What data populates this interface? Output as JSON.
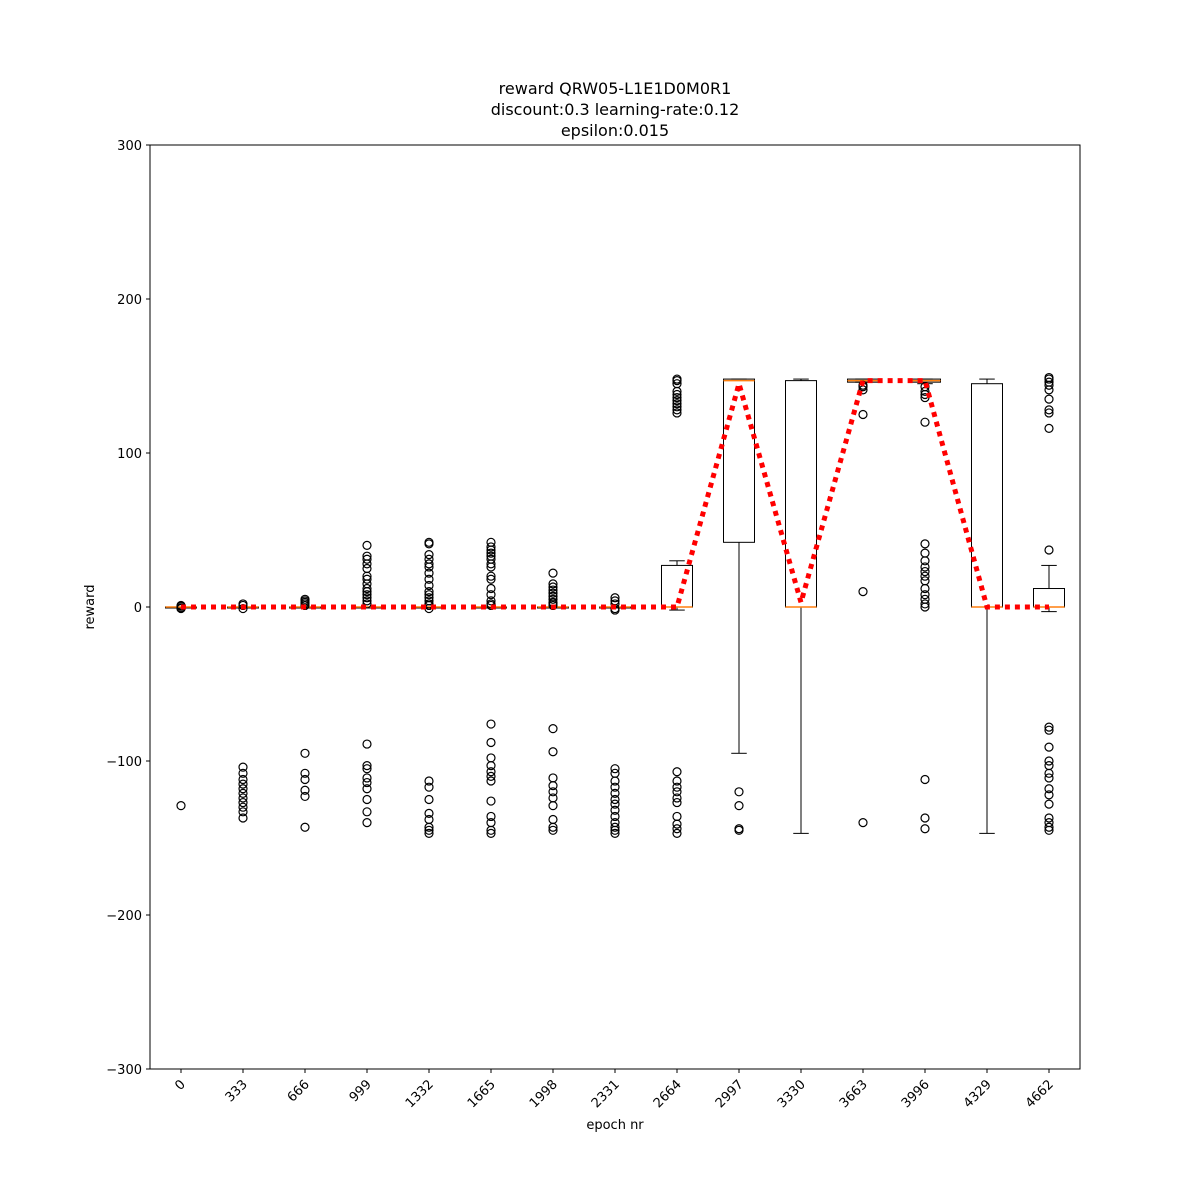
{
  "chart_data": {
    "type": "box",
    "title_lines": [
      "reward QRW05-L1E1D0M0R1",
      "discount:0.3 learning-rate:0.12",
      "epsilon:0.015"
    ],
    "xlabel": "epoch nr",
    "ylabel": "reward",
    "ylim": [
      -300,
      300
    ],
    "yticks": [
      -300,
      -200,
      -100,
      0,
      100,
      200,
      300
    ],
    "ytick_labels": [
      "−300",
      "−200",
      "−100",
      "0",
      "100",
      "200",
      "300"
    ],
    "grid": false,
    "categories": [
      "0",
      "333",
      "666",
      "999",
      "1332",
      "1665",
      "1998",
      "2331",
      "2664",
      "2997",
      "3330",
      "3663",
      "3996",
      "4329",
      "4662"
    ],
    "boxes": [
      {
        "q1": 0,
        "median": 0,
        "q3": 0,
        "whisker_low": 0,
        "whisker_high": 0,
        "outliers": [
          -1,
          -0.5,
          0.5,
          1,
          -129
        ]
      },
      {
        "q1": 0,
        "median": 0,
        "q3": 0,
        "whisker_low": 0,
        "whisker_high": 0,
        "outliers": [
          -1,
          1,
          2,
          -104,
          -108,
          -112,
          -115,
          -118,
          -121,
          -124,
          -127,
          -130,
          -133,
          -137
        ]
      },
      {
        "q1": 0,
        "median": 0,
        "q3": 0,
        "whisker_low": 0,
        "whisker_high": 0,
        "outliers": [
          1,
          2,
          3,
          4,
          5,
          -95,
          -108,
          -112,
          -119,
          -123,
          -143
        ]
      },
      {
        "q1": 0,
        "median": 0,
        "q3": 0,
        "whisker_low": 0,
        "whisker_high": 0,
        "outliers": [
          2,
          4,
          6,
          8,
          10,
          12,
          15,
          18,
          20,
          25,
          28,
          31,
          33,
          40,
          -89,
          -103,
          -105,
          -111,
          -114,
          -118,
          -125,
          -133,
          -140
        ]
      },
      {
        "q1": 0,
        "median": 0,
        "q3": 0,
        "whisker_low": 0,
        "whisker_high": 0,
        "outliers": [
          -1,
          1,
          2,
          4,
          6,
          8,
          10,
          14,
          18,
          22,
          26,
          28,
          31,
          34,
          41,
          42,
          -113,
          -117,
          -125,
          -134,
          -138,
          -143,
          -145,
          -147
        ]
      },
      {
        "q1": 0,
        "median": 0,
        "q3": 0,
        "whisker_low": 0,
        "whisker_high": 0,
        "outliers": [
          1,
          2,
          4,
          8,
          12,
          18,
          20,
          26,
          28,
          31,
          33,
          35,
          37,
          39,
          42,
          -76,
          -88,
          -98,
          -103,
          -107,
          -110,
          -113,
          -126,
          -136,
          -140,
          -145,
          -147
        ]
      },
      {
        "q1": 0,
        "median": 0,
        "q3": 0,
        "whisker_low": 0,
        "whisker_high": 0,
        "outliers": [
          1,
          2,
          3,
          5,
          7,
          9,
          11,
          13,
          15,
          22,
          -79,
          -94,
          -111,
          -116,
          -120,
          -124,
          -129,
          -138,
          -143,
          -145
        ]
      },
      {
        "q1": 0,
        "median": 0,
        "q3": 0,
        "whisker_low": 0,
        "whisker_high": 0,
        "outliers": [
          -2,
          -1,
          2,
          4,
          6,
          -105,
          -108,
          -113,
          -117,
          -121,
          -125,
          -128,
          -132,
          -136,
          -140,
          -143,
          -145,
          -147
        ]
      },
      {
        "q1": 0,
        "median": 0,
        "q3": 27,
        "whisker_low": -2,
        "whisker_high": 30,
        "outliers": [
          126,
          128,
          130,
          132,
          134,
          136,
          138,
          140,
          145,
          147,
          148,
          -107,
          -113,
          -117,
          -120,
          -124,
          -127,
          -136,
          -141,
          -144,
          -147
        ]
      },
      {
        "q1": 42,
        "median": 147,
        "q3": 148,
        "whisker_low": -95,
        "whisker_high": 148,
        "outliers": [
          -120,
          -129,
          -144,
          -145
        ]
      },
      {
        "q1": 0,
        "median": 0,
        "q3": 147,
        "whisker_low": -147,
        "whisker_high": 148,
        "outliers": []
      },
      {
        "q1": 146,
        "median": 147,
        "q3": 148,
        "whisker_low": 146,
        "whisker_high": 148,
        "outliers": [
          125,
          141,
          143,
          144,
          10,
          -140
        ]
      },
      {
        "q1": 146,
        "median": 147,
        "q3": 148,
        "whisker_low": 145,
        "whisker_high": 148,
        "outliers": [
          120,
          136,
          138,
          140,
          143,
          0,
          2,
          5,
          8,
          12,
          17,
          20,
          23,
          26,
          30,
          35,
          41,
          -112,
          -137,
          -144
        ]
      },
      {
        "q1": 0,
        "median": 0,
        "q3": 145,
        "whisker_low": -147,
        "whisker_high": 148,
        "outliers": []
      },
      {
        "q1": 0,
        "median": 0,
        "q3": 12,
        "whisker_low": -3,
        "whisker_high": 27,
        "outliers": [
          37,
          116,
          126,
          128,
          135,
          141,
          144,
          146,
          148,
          149,
          -78,
          -80,
          -91,
          -100,
          -103,
          -108,
          -111,
          -118,
          -122,
          -128,
          -137,
          -140,
          -143,
          -145
        ]
      }
    ],
    "trend_line": {
      "style": "red dotted",
      "color": "#ff0000",
      "x": [
        "0",
        "333",
        "666",
        "999",
        "1332",
        "1665",
        "1998",
        "2331",
        "2664",
        "2997",
        "3330",
        "3663",
        "3996",
        "4329",
        "4662"
      ],
      "y": [
        0,
        0,
        0,
        0,
        0,
        0,
        0,
        0,
        0,
        145,
        3,
        147,
        147,
        0,
        0
      ]
    },
    "colors": {
      "box": "#000000",
      "median": "#ff7f0e",
      "trend": "#ff0000"
    }
  }
}
